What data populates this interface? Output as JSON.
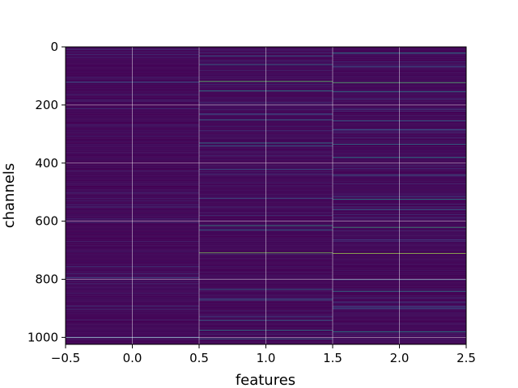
{
  "chart_data": {
    "type": "heatmap",
    "xlabel": "features",
    "ylabel": "channels",
    "xlim": [
      -0.5,
      2.5
    ],
    "ylim": [
      1024,
      0
    ],
    "x_ticks": [
      "−0.5",
      "0.0",
      "0.5",
      "1.0",
      "1.5",
      "2.0",
      "2.5"
    ],
    "x_tick_values": [
      -0.5,
      0.0,
      0.5,
      1.0,
      1.5,
      2.0,
      2.5
    ],
    "y_ticks": [
      "0",
      "200",
      "400",
      "600",
      "800",
      "1000"
    ],
    "y_tick_values": [
      0,
      200,
      400,
      600,
      800,
      1000
    ],
    "grid": true,
    "colormap": "viridis",
    "n_columns": 3,
    "n_rows": 1024,
    "bright_rows": [
      {
        "row": 20,
        "col": 2,
        "v": 0.45
      },
      {
        "row": 30,
        "col": 1,
        "v": 0.35
      },
      {
        "row": 60,
        "col": 1,
        "v": 0.4
      },
      {
        "row": 68,
        "col": 2,
        "v": 0.3
      },
      {
        "row": 120,
        "col": 0,
        "v": 0.3
      },
      {
        "row": 118,
        "col": 1,
        "v": 0.75
      },
      {
        "row": 122,
        "col": 2,
        "v": 0.7
      },
      {
        "row": 150,
        "col": 1,
        "v": 0.5
      },
      {
        "row": 155,
        "col": 2,
        "v": 0.45
      },
      {
        "row": 230,
        "col": 1,
        "v": 0.3
      },
      {
        "row": 250,
        "col": 1,
        "v": 0.4
      },
      {
        "row": 255,
        "col": 2,
        "v": 0.35
      },
      {
        "row": 285,
        "col": 2,
        "v": 0.3
      },
      {
        "row": 330,
        "col": 1,
        "v": 0.45
      },
      {
        "row": 340,
        "col": 1,
        "v": 0.35
      },
      {
        "row": 335,
        "col": 2,
        "v": 0.4
      },
      {
        "row": 380,
        "col": 2,
        "v": 0.5
      },
      {
        "row": 420,
        "col": 1,
        "v": 0.3
      },
      {
        "row": 440,
        "col": 2,
        "v": 0.35
      },
      {
        "row": 520,
        "col": 1,
        "v": 0.3
      },
      {
        "row": 525,
        "col": 2,
        "v": 0.5
      },
      {
        "row": 560,
        "col": 2,
        "v": 0.35
      },
      {
        "row": 615,
        "col": 1,
        "v": 0.55
      },
      {
        "row": 620,
        "col": 2,
        "v": 0.6
      },
      {
        "row": 630,
        "col": 1,
        "v": 0.4
      },
      {
        "row": 708,
        "col": 1,
        "v": 0.8
      },
      {
        "row": 710,
        "col": 2,
        "v": 0.85
      },
      {
        "row": 795,
        "col": 0,
        "v": 0.25
      },
      {
        "row": 800,
        "col": 2,
        "v": 0.3
      },
      {
        "row": 835,
        "col": 1,
        "v": 0.4
      },
      {
        "row": 840,
        "col": 2,
        "v": 0.45
      },
      {
        "row": 870,
        "col": 1,
        "v": 0.35
      },
      {
        "row": 900,
        "col": 2,
        "v": 0.3
      },
      {
        "row": 940,
        "col": 1,
        "v": 0.35
      },
      {
        "row": 975,
        "col": 1,
        "v": 0.45
      },
      {
        "row": 980,
        "col": 2,
        "v": 0.5
      },
      {
        "row": 1000,
        "col": 0,
        "v": 0.3
      },
      {
        "row": 1005,
        "col": 1,
        "v": 0.4
      }
    ]
  }
}
